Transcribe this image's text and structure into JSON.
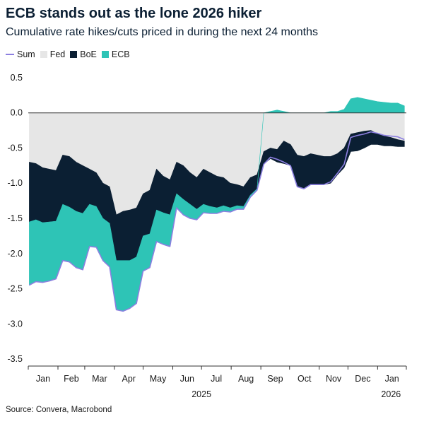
{
  "header": {
    "title": "ECB stands out as the lone 2026 hiker",
    "subtitle": "Cumulative rate hikes/cuts priced in during the next 24 months"
  },
  "footer": {
    "source": "Source: Convera, Macrobond"
  },
  "chart_data": {
    "type": "area",
    "title": "ECB stands out as the lone 2026 hiker",
    "subtitle": "Cumulative rate hikes/cuts priced in during the next 24 months",
    "xlabel": "",
    "ylabel": "",
    "ylim": [
      -3.6,
      0.6
    ],
    "yticks": [
      0.5,
      0.0,
      -0.5,
      -1.0,
      -1.5,
      -2.0,
      -2.5,
      -3.0,
      -3.5
    ],
    "ytick_labels": [
      "0.5",
      "0.0",
      "-0.5",
      "-1.0",
      "-1.5",
      "-2.0",
      "-2.5",
      "-3.0",
      "-3.5"
    ],
    "x_range": [
      "2025-01-01",
      "2026-01-31"
    ],
    "x_month_labels": [
      "Jan",
      "Feb",
      "Mar",
      "Apr",
      "May",
      "Jun",
      "Jul",
      "Aug",
      "Sep",
      "Oct",
      "Nov",
      "Dec",
      "Jan"
    ],
    "x_year_labels": [
      {
        "label": "2025",
        "date": "2025-07-01"
      },
      {
        "label": "2026",
        "date": "2026-01-15"
      }
    ],
    "legend_position": "top-left",
    "colors": {
      "Sum": "#8c7fe0",
      "Fed": "#e6e6e6",
      "BoE": "#0b1f33",
      "ECB": "#2ec4b6"
    },
    "x": [
      "2025-01-02",
      "2025-01-09",
      "2025-01-16",
      "2025-01-23",
      "2025-01-30",
      "2025-02-06",
      "2025-02-13",
      "2025-02-20",
      "2025-02-27",
      "2025-03-06",
      "2025-03-13",
      "2025-03-20",
      "2025-03-27",
      "2025-04-03",
      "2025-04-10",
      "2025-04-17",
      "2025-04-24",
      "2025-05-01",
      "2025-05-08",
      "2025-05-15",
      "2025-05-22",
      "2025-05-29",
      "2025-06-05",
      "2025-06-12",
      "2025-06-19",
      "2025-06-26",
      "2025-07-03",
      "2025-07-10",
      "2025-07-17",
      "2025-07-24",
      "2025-07-31",
      "2025-08-07",
      "2025-08-14",
      "2025-08-21",
      "2025-08-28",
      "2025-09-04",
      "2025-09-11",
      "2025-09-18",
      "2025-09-25",
      "2025-10-02",
      "2025-10-09",
      "2025-10-16",
      "2025-10-23",
      "2025-10-30",
      "2025-11-06",
      "2025-11-13",
      "2025-11-20",
      "2025-11-27",
      "2025-12-04",
      "2025-12-11",
      "2025-12-18",
      "2025-12-25",
      "2026-01-01",
      "2026-01-08",
      "2026-01-15",
      "2026-01-22",
      "2026-01-29"
    ],
    "series": [
      {
        "name": "Fed",
        "values": [
          -0.7,
          -0.72,
          -0.78,
          -0.8,
          -0.82,
          -0.6,
          -0.62,
          -0.7,
          -0.75,
          -0.8,
          -0.85,
          -1.0,
          -1.05,
          -1.45,
          -1.4,
          -1.38,
          -1.35,
          -1.15,
          -1.1,
          -0.8,
          -0.9,
          -0.95,
          -0.7,
          -0.75,
          -0.85,
          -0.92,
          -0.8,
          -0.85,
          -0.9,
          -0.92,
          -1.0,
          -1.02,
          -1.05,
          -0.92,
          -0.88,
          -0.55,
          -0.5,
          -0.52,
          -0.4,
          -0.45,
          -0.6,
          -0.62,
          -0.58,
          -0.6,
          -0.62,
          -0.62,
          -0.58,
          -0.5,
          -0.3,
          -0.28,
          -0.26,
          -0.25,
          -0.3,
          -0.33,
          -0.35,
          -0.38,
          -0.4
        ]
      },
      {
        "name": "BoE",
        "values": [
          -0.85,
          -0.8,
          -0.78,
          -0.75,
          -0.72,
          -0.7,
          -0.72,
          -0.7,
          -0.68,
          -0.5,
          -0.48,
          -0.5,
          -0.52,
          -0.65,
          -0.7,
          -0.72,
          -0.7,
          -0.6,
          -0.62,
          -0.58,
          -0.52,
          -0.5,
          -0.45,
          -0.48,
          -0.45,
          -0.45,
          -0.5,
          -0.48,
          -0.45,
          -0.4,
          -0.35,
          -0.3,
          -0.28,
          -0.25,
          -0.2,
          -0.18,
          -0.15,
          -0.18,
          -0.32,
          -0.3,
          -0.45,
          -0.46,
          -0.44,
          -0.42,
          -0.4,
          -0.38,
          -0.3,
          -0.28,
          -0.25,
          -0.26,
          -0.24,
          -0.2,
          -0.15,
          -0.14,
          -0.12,
          -0.1,
          -0.08
        ]
      },
      {
        "name": "ECB",
        "values": [
          -0.9,
          -0.88,
          -0.85,
          -0.84,
          -0.82,
          -0.8,
          -0.78,
          -0.8,
          -0.8,
          -0.6,
          -0.58,
          -0.6,
          -0.62,
          -0.7,
          -0.72,
          -0.68,
          -0.66,
          -0.5,
          -0.48,
          -0.45,
          -0.45,
          -0.45,
          -0.2,
          -0.22,
          -0.2,
          -0.15,
          -0.12,
          -0.1,
          -0.08,
          -0.08,
          -0.06,
          -0.05,
          -0.04,
          -0.03,
          -0.02,
          0.0,
          0.02,
          0.04,
          0.02,
          0.0,
          0.0,
          0.0,
          0.0,
          0.0,
          0.0,
          0.02,
          0.02,
          0.05,
          0.2,
          0.22,
          0.2,
          0.18,
          0.16,
          0.15,
          0.14,
          0.14,
          0.1
        ]
      },
      {
        "name": "Sum",
        "values": [
          -2.45,
          -2.4,
          -2.41,
          -2.39,
          -2.36,
          -2.1,
          -2.12,
          -2.2,
          -2.23,
          -1.9,
          -1.91,
          -2.1,
          -2.19,
          -2.8,
          -2.82,
          -2.78,
          -2.71,
          -2.25,
          -2.2,
          -1.83,
          -1.87,
          -1.9,
          -1.35,
          -1.45,
          -1.5,
          -1.52,
          -1.42,
          -1.43,
          -1.43,
          -1.4,
          -1.41,
          -1.37,
          -1.37,
          -1.2,
          -1.1,
          -0.73,
          -0.63,
          -0.66,
          -0.7,
          -0.75,
          -1.05,
          -1.08,
          -1.02,
          -1.02,
          -1.02,
          -0.98,
          -0.86,
          -0.73,
          -0.35,
          -0.32,
          -0.3,
          -0.27,
          -0.29,
          -0.32,
          -0.33,
          -0.34,
          -0.38
        ]
      }
    ]
  }
}
